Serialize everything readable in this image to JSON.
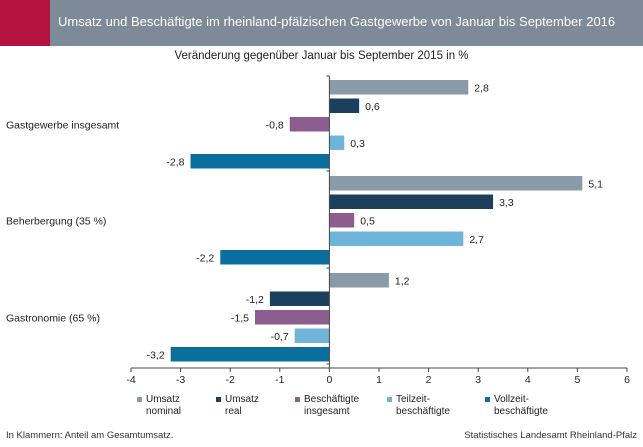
{
  "header": {
    "title": "Umsatz und Beschäftigte im rheinland-pfälzischen Gastgewerbe von Januar bis September 2016"
  },
  "footer": {
    "note": "In Klammern: Anteil am Gesamtumsatz.",
    "source": "Statistisches Landesamt Rheinland-Pfalz"
  },
  "chart_data": {
    "type": "bar",
    "orientation": "horizontal",
    "title": "Veränderung gegenüber Januar bis September 2015 in %",
    "categories": [
      "Gastgewerbe insgesamt",
      "Beherbergung (35 %)",
      "Gastronomie (65 %)"
    ],
    "series": [
      {
        "name": "Umsatz nominal",
        "legend_lines": [
          "Umsatz",
          "nominal"
        ],
        "color": "#8b9aa8",
        "values": [
          2.8,
          5.1,
          1.2
        ]
      },
      {
        "name": "Umsatz real",
        "legend_lines": [
          "Umsatz",
          "real"
        ],
        "color": "#1c3f5e",
        "values": [
          0.6,
          3.3,
          -1.2
        ]
      },
      {
        "name": "Beschäftigte insgesamt",
        "legend_lines": [
          "Beschäftigte",
          "insgesamt"
        ],
        "color": "#8c5d8f",
        "values": [
          -0.8,
          0.5,
          -1.5
        ]
      },
      {
        "name": "Teilzeitbeschäftigte",
        "legend_lines": [
          "Teilzeit-",
          "beschäftigte"
        ],
        "color": "#6fb5d9",
        "values": [
          0.3,
          2.7,
          -0.7
        ]
      },
      {
        "name": "Vollzeitbeschäftigte",
        "legend_lines": [
          "Vollzeit-",
          "beschäftigte"
        ],
        "color": "#0b6f9e",
        "values": [
          -2.8,
          -2.2,
          -3.2
        ]
      }
    ],
    "xlim": [
      -4,
      6
    ],
    "xticks": [
      -4,
      -3,
      -2,
      -1,
      0,
      1,
      2,
      3,
      4,
      5,
      6
    ],
    "grid": false,
    "legend_position": "bottom"
  }
}
